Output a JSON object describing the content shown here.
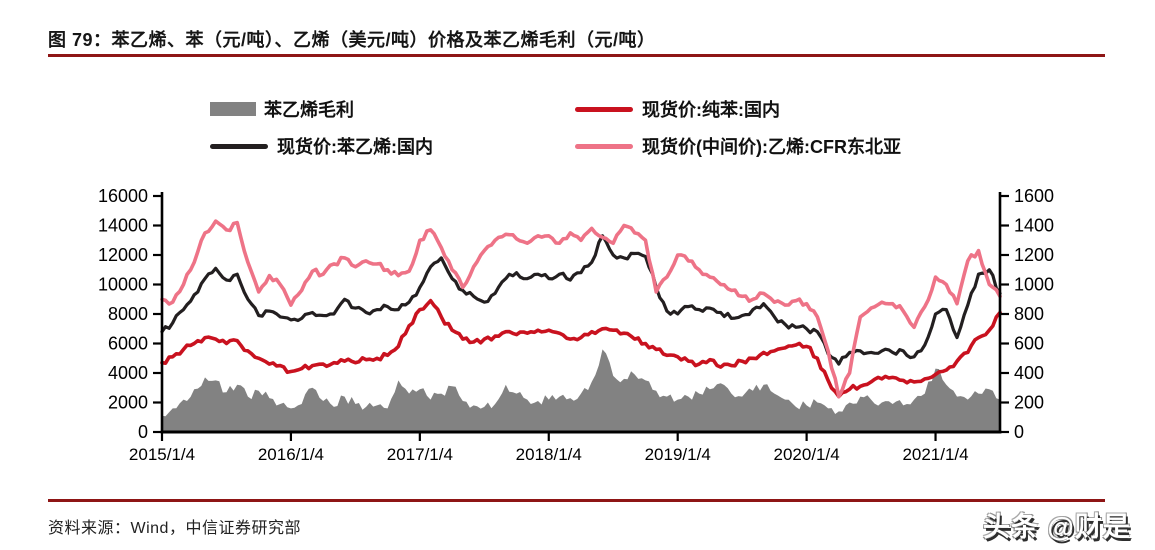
{
  "title": {
    "text": "图 79：苯乙烯、苯（元/吨）、乙烯（美元/吨）价格及苯乙烯毛利（元/吨）"
  },
  "footer": {
    "source": "资料来源：Wind，中信证券研究部",
    "watermark": "头条 @财是"
  },
  "colors": {
    "rule_red": "#8e1515",
    "axis": "#000000",
    "margin_gray": "#828282",
    "styrene_black": "#231f20",
    "benzene_red": "#c9121f",
    "ethylene_pink": "#ee7387"
  },
  "legend": {
    "items": [
      {
        "label": "苯乙烯毛利",
        "swatch": "area",
        "color": "#828282"
      },
      {
        "label": "现货价:纯苯:国内",
        "swatch": "line",
        "color": "#c9121f"
      },
      {
        "label": "现货价:苯乙烯:国内",
        "swatch": "line",
        "color": "#231f20"
      },
      {
        "label": "现货价(中间价):乙烯:CFR东北亚",
        "swatch": "line",
        "color": "#ee7387"
      }
    ]
  },
  "chart_data": {
    "type": "line",
    "subtype": "multi-series with area fill, dual y-axes",
    "x_unit": "month",
    "x_start": "2015-01",
    "x_end": "2021-07",
    "n_points": 79,
    "x_tick_labels": [
      "2015/1/4",
      "2016/1/4",
      "2017/1/4",
      "2018/1/4",
      "2019/1/4",
      "2020/1/4",
      "2021/1/4"
    ],
    "y_left": {
      "label": "元/吨",
      "min": 0,
      "max": 16000,
      "step": 2000,
      "ticks": [
        0,
        2000,
        4000,
        6000,
        8000,
        10000,
        12000,
        14000,
        16000
      ]
    },
    "y_right": {
      "label": "美元/吨",
      "min": 0,
      "max": 1600,
      "step": 200,
      "ticks": [
        0,
        200,
        400,
        600,
        800,
        1000,
        1200,
        1400,
        1600
      ]
    },
    "grid": false,
    "legend_position": "top",
    "series": [
      {
        "name": "苯乙烯毛利",
        "axis": "left",
        "type": "area",
        "color": "#828282",
        "values": [
          1100,
          1600,
          2200,
          2900,
          3700,
          3500,
          2700,
          3200,
          2400,
          2800,
          2300,
          1900,
          1600,
          1900,
          3000,
          2100,
          1700,
          2400,
          1900,
          1700,
          1800,
          1600,
          3500,
          2600,
          2900,
          2200,
          2600,
          3100,
          2100,
          1800,
          1700,
          1900,
          3200,
          2600,
          2200,
          2100,
          2200,
          2400,
          2300,
          2600,
          3400,
          5600,
          3800,
          3600,
          3900,
          3500,
          2800,
          2400,
          2200,
          2400,
          2600,
          2900,
          3300,
          2600,
          2400,
          2800,
          3200,
          2600,
          2200,
          1700,
          1800,
          2000,
          1600,
          1400,
          2000,
          2400,
          2200,
          2000,
          1900,
          1800,
          2200,
          2600,
          4300,
          3200,
          2400,
          2200,
          2600,
          2900,
          2200
        ]
      },
      {
        "name": "现货价:苯乙烯:国内",
        "axis": "left",
        "type": "line",
        "color": "#231f20",
        "values": [
          6800,
          7400,
          8300,
          9300,
          10400,
          11100,
          10300,
          10700,
          9000,
          7900,
          8200,
          7800,
          7600,
          7700,
          8100,
          7900,
          8000,
          9000,
          8400,
          8100,
          8300,
          8500,
          8300,
          8800,
          9800,
          11200,
          11800,
          10400,
          9600,
          9200,
          8800,
          9400,
          10400,
          10800,
          10400,
          10700,
          10400,
          10700,
          10300,
          10800,
          11500,
          13300,
          12000,
          11800,
          12100,
          11900,
          9800,
          8200,
          8000,
          8500,
          8300,
          8400,
          8100,
          7700,
          7900,
          8300,
          8700,
          7800,
          7300,
          7100,
          7000,
          6800,
          5300,
          4600,
          5400,
          5500,
          5400,
          5500,
          5400,
          5500,
          5100,
          5900,
          8000,
          8300,
          6400,
          8600,
          10700,
          11000,
          9400
        ]
      },
      {
        "name": "现货价:纯苯:国内",
        "axis": "left",
        "type": "line",
        "color": "#c9121f",
        "values": [
          4700,
          5100,
          5600,
          6000,
          6400,
          6300,
          6000,
          6200,
          5500,
          5000,
          4600,
          4500,
          4100,
          4300,
          4500,
          4600,
          4700,
          4800,
          4700,
          4900,
          5000,
          5200,
          5800,
          7200,
          8300,
          8900,
          7800,
          6900,
          6300,
          6100,
          6300,
          6500,
          6800,
          6600,
          6700,
          6900,
          6900,
          6700,
          6300,
          6400,
          6800,
          7000,
          6900,
          6700,
          6300,
          6000,
          5600,
          5200,
          5100,
          4800,
          4600,
          4900,
          4400,
          4500,
          4800,
          5000,
          5400,
          5500,
          5700,
          5900,
          5800,
          5000,
          3500,
          2400,
          2900,
          3100,
          3400,
          3600,
          3700,
          3500,
          3400,
          3600,
          3900,
          4200,
          4800,
          5400,
          6400,
          6900,
          8100
        ]
      },
      {
        "name": "现货价(中间价):乙烯:CFR东北亚",
        "axis": "right",
        "type": "line",
        "color": "#ee7387",
        "values": [
          900,
          880,
          1000,
          1150,
          1350,
          1430,
          1370,
          1420,
          1150,
          950,
          1060,
          1000,
          860,
          960,
          1090,
          1070,
          1140,
          1180,
          1120,
          1160,
          1140,
          1100,
          1060,
          1090,
          1300,
          1370,
          1250,
          1100,
          980,
          1120,
          1230,
          1300,
          1340,
          1310,
          1280,
          1330,
          1330,
          1280,
          1350,
          1300,
          1380,
          1320,
          1280,
          1400,
          1350,
          1300,
          950,
          1050,
          1200,
          1160,
          1100,
          1050,
          1000,
          960,
          920,
          900,
          940,
          880,
          860,
          890,
          870,
          780,
          550,
          240,
          400,
          780,
          840,
          880,
          870,
          820,
          710,
          850,
          1050,
          1000,
          870,
          1160,
          1230,
          1000,
          920
        ]
      }
    ]
  }
}
